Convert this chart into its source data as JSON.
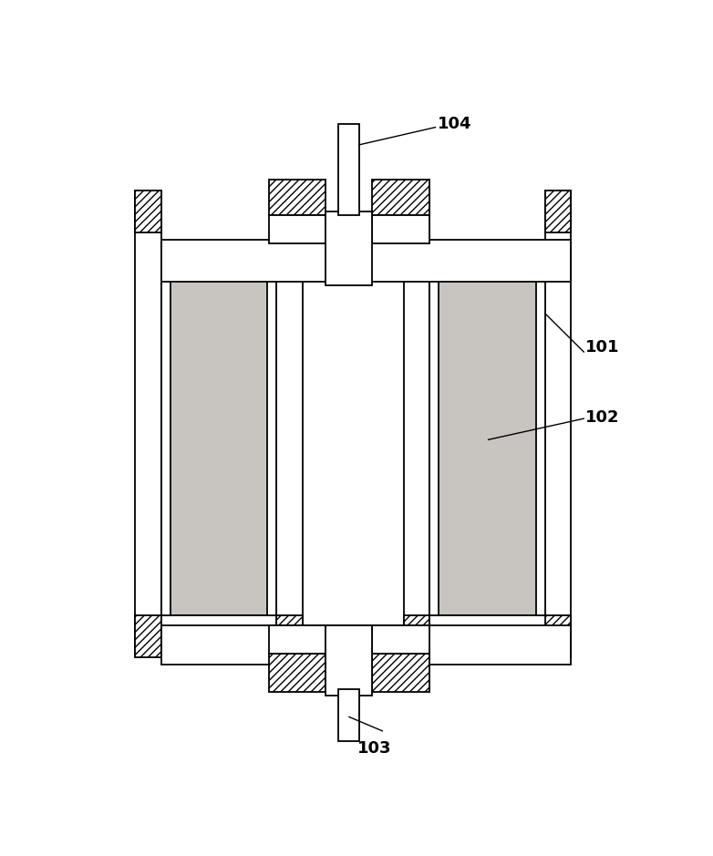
{
  "background_color": "#ffffff",
  "lw": 1.3,
  "hatch_density": "////",
  "stipple_color": "#c8c5c0",
  "white": "#ffffff",
  "black": "#000000",
  "fig_w": 7.82,
  "fig_h": 9.39,
  "dpi": 100
}
